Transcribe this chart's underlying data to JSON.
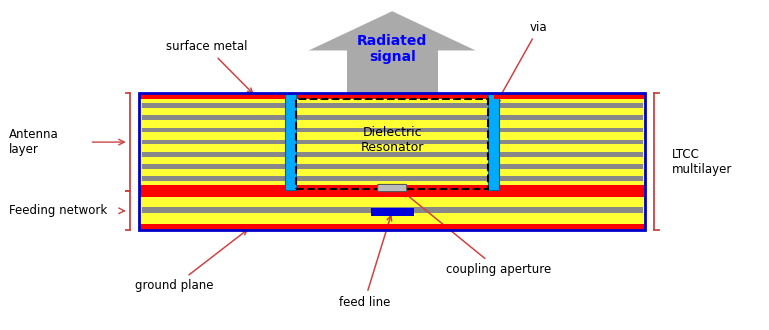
{
  "fig_width": 7.69,
  "fig_height": 3.3,
  "dpi": 100,
  "bg_color": "#ffffff",
  "colors": {
    "yellow": "#FFFF33",
    "red": "#FF0000",
    "blue_dark": "#0000CC",
    "blue_feed": "#0000DD",
    "cyan": "#00AAFF",
    "gray_stripe": "#888888",
    "gray_arrow": "#AAAAAA",
    "arrow_color": "#CC4444",
    "text_blue": "#0000FF",
    "black": "#000000",
    "dashed_border": "#000000",
    "coup_fill": "#BBBBBB",
    "coup_edge": "#555555"
  },
  "labels": {
    "surface_metal": "surface metal",
    "via": "via",
    "radiated": "Radiated\nsignal",
    "dielectric_resonator": "Dielectric\nResonator",
    "antenna_layer": "Antenna\nlayer",
    "feeding_network": "Feeding network",
    "ltcc": "LTCC\nmultilayer",
    "ground_plane": "ground plane",
    "feed_line": "feed line",
    "coupling_aperture": "coupling aperture"
  }
}
